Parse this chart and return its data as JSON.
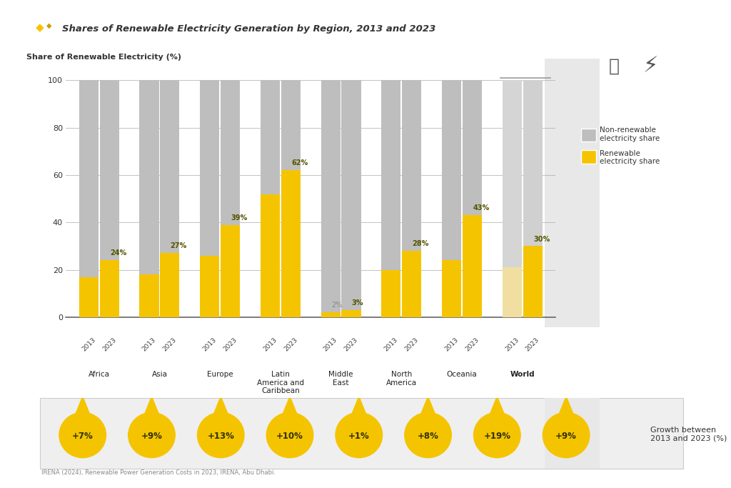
{
  "title": "Shares of Renewable Electricity Generation by Region, 2013 and 2023",
  "ylabel": "Share of Renewable Electricity (%)",
  "regions": [
    "Africa",
    "Asia",
    "Europe",
    "Latin\nAmerica and\nCaribbean",
    "Middle\nEast",
    "North\nAmerica",
    "Oceania",
    "World"
  ],
  "renewable_2013": [
    17,
    18,
    26,
    52,
    2,
    20,
    24,
    21
  ],
  "renewable_2023": [
    24,
    27,
    39,
    62,
    3,
    28,
    43,
    30
  ],
  "total": 100,
  "bar_width": 0.32,
  "renewable_color": "#F5C400",
  "non_renewable_color": "#BEBEBE",
  "world_renewable_2013_color": "#F0DFA0",
  "world_non_renewable_2013_color": "#D5D5D5",
  "world_non_renewable_2023_color": "#D0D0D0",
  "background_color": "#FFFFFF",
  "grid_color": "#AAAAAA",
  "growth": [
    "+7%",
    "+9%",
    "+13%",
    "+10%",
    "+1%",
    "+8%",
    "+19%",
    "+9%"
  ],
  "growth_label": "Growth between\n2013 and 2023 (%)",
  "legend_non_renewable": "Non-renewable\nelectricity share",
  "legend_renewable": "Renewable\nelectricity share",
  "yticks": [
    0,
    20,
    40,
    60,
    80,
    100
  ],
  "source_text": "IRENA (2024), Renewable Power Generation Costs in 2023, IRENA, Abu Dhabi.",
  "world_bg_color": "#E8E8E8"
}
